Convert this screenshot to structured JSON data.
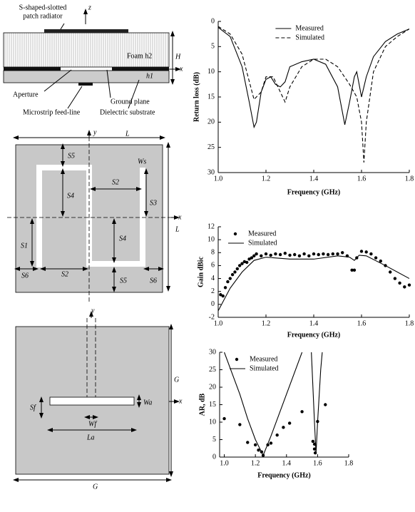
{
  "diagram": {
    "panel_a": [
      "S-shaped-slotted",
      "patch radiator",
      "z",
      "Foam h2",
      "H",
      "x",
      "h1",
      "Aperture",
      "Ground plane",
      "Microstrip feed-line",
      "Dielectric substrate"
    ],
    "panel_b": [
      "y",
      "L",
      "S5",
      "Ws",
      "S2",
      "S4",
      "S3",
      "x",
      "L",
      "S4",
      "S1",
      "S6",
      "S2",
      "S5",
      "S6"
    ],
    "panel_c": [
      "y",
      "G",
      "Wa",
      "x",
      "Sf",
      "Wf",
      "La",
      "G"
    ]
  },
  "chart_data": [
    {
      "type": "line",
      "y_label": "Return loss (dB)",
      "x_label": "Frequency (GHz)",
      "y_inverted": true,
      "legend": "upper center",
      "xlim": [
        1.0,
        1.8
      ],
      "xticks": [
        {
          "value": 1.0,
          "label": "1.0"
        },
        1.2,
        1.4,
        1.6,
        1.8
      ],
      "ylim": [
        0,
        30
      ],
      "yticks": [
        0,
        5,
        10,
        15,
        20,
        25,
        30
      ],
      "series": [
        {
          "name": "Measured",
          "style": "solid",
          "color": "#000000",
          "x": [
            1.0,
            1.05,
            1.1,
            1.13,
            1.15,
            1.16,
            1.18,
            1.2,
            1.22,
            1.24,
            1.26,
            1.28,
            1.3,
            1.35,
            1.4,
            1.45,
            1.5,
            1.53,
            1.55,
            1.57,
            1.58,
            1.6,
            1.62,
            1.65,
            1.7,
            1.75,
            1.8
          ],
          "values": [
            1.2,
            3,
            9,
            16,
            21,
            20,
            14,
            11.5,
            11,
            12.5,
            13,
            12,
            9,
            8,
            7.5,
            8.5,
            13,
            20.5,
            16,
            11,
            10,
            15,
            11,
            7,
            4,
            2.5,
            1.5
          ]
        },
        {
          "name": "Simulated",
          "style": "dashed",
          "color": "#000000",
          "x": [
            1.0,
            1.05,
            1.1,
            1.15,
            1.18,
            1.2,
            1.23,
            1.26,
            1.28,
            1.3,
            1.35,
            1.4,
            1.45,
            1.5,
            1.55,
            1.58,
            1.6,
            1.61,
            1.62,
            1.65,
            1.7,
            1.75,
            1.8
          ],
          "values": [
            1,
            2.5,
            6.5,
            15.5,
            14,
            11,
            11,
            14,
            16,
            13,
            9,
            7.5,
            7.5,
            9,
            12.5,
            15,
            20,
            28,
            20,
            10,
            5,
            3,
            1.5
          ]
        }
      ]
    },
    {
      "type": "line",
      "y_label": "Gain dBic",
      "x_label": "Frequency (GHz)",
      "y_inverted": false,
      "legend": "upper left",
      "xlim": [
        1.0,
        1.8
      ],
      "xticks": [
        {
          "value": 1.0,
          "label": "1.0"
        },
        1.2,
        1.4,
        1.6,
        1.8
      ],
      "ylim": [
        -2,
        12
      ],
      "yticks": [
        -2,
        0,
        2,
        4,
        6,
        8,
        10,
        12
      ],
      "series": [
        {
          "name": "Measured",
          "style": "markers",
          "color": "#000000",
          "x": [
            1.01,
            1.02,
            1.03,
            1.04,
            1.05,
            1.06,
            1.07,
            1.08,
            1.09,
            1.1,
            1.11,
            1.12,
            1.13,
            1.14,
            1.15,
            1.16,
            1.18,
            1.2,
            1.22,
            1.24,
            1.26,
            1.28,
            1.3,
            1.32,
            1.34,
            1.36,
            1.38,
            1.4,
            1.42,
            1.44,
            1.46,
            1.48,
            1.5,
            1.52,
            1.54,
            1.56,
            1.57,
            1.58,
            1.6,
            1.62,
            1.64,
            1.66,
            1.68,
            1.7,
            1.72,
            1.74,
            1.76,
            1.78,
            1.8
          ],
          "values": [
            1.5,
            1.3,
            2.6,
            3.5,
            4,
            4.6,
            5,
            5.5,
            6,
            6.3,
            6.6,
            6.5,
            7,
            7.2,
            7.5,
            7.8,
            7.5,
            7.8,
            7.6,
            7.8,
            7.7,
            7.9,
            7.6,
            7.7,
            7.5,
            7.8,
            7.5,
            7.8,
            7.7,
            7.8,
            7.7,
            7.8,
            7.8,
            8,
            7.5,
            5.3,
            5.3,
            7.2,
            8.2,
            8.1,
            7.8,
            7.2,
            6.7,
            6,
            5,
            4,
            3.3,
            2.7,
            3
          ]
        },
        {
          "name": "Simulated",
          "style": "solid",
          "color": "#000000",
          "x": [
            1.0,
            1.05,
            1.1,
            1.15,
            1.2,
            1.3,
            1.4,
            1.5,
            1.55,
            1.57,
            1.59,
            1.62,
            1.7,
            1.8
          ],
          "values": [
            -1,
            2.5,
            5,
            6.8,
            7.3,
            7,
            7,
            7.5,
            7.3,
            6.8,
            7.6,
            7.5,
            6,
            4
          ]
        }
      ]
    },
    {
      "type": "line",
      "y_label": "AR, dB",
      "x_label": "Frequency (GHz)",
      "y_inverted": false,
      "legend": "upper left",
      "xlim": [
        0.97,
        1.8
      ],
      "xticks": [
        {
          "value": 1.0,
          "label": "1.0"
        },
        1.2,
        1.4,
        1.6,
        1.8
      ],
      "ylim": [
        0,
        30
      ],
      "yticks": [
        0,
        5,
        10,
        15,
        20,
        25,
        30
      ],
      "series": [
        {
          "name": "Measured",
          "style": "markers",
          "color": "#000000",
          "x": [
            1.0,
            1.1,
            1.15,
            1.2,
            1.22,
            1.24,
            1.25,
            1.28,
            1.3,
            1.34,
            1.38,
            1.42,
            1.5,
            1.57,
            1.58,
            1.58,
            1.585,
            1.6,
            1.65
          ],
          "values": [
            11,
            9.3,
            4.2,
            3.5,
            2,
            1.5,
            0.5,
            3.5,
            4,
            6.3,
            8.5,
            9.7,
            13,
            4.5,
            3.7,
            2.3,
            1.2,
            10.2,
            15
          ]
        },
        {
          "name": "Simulated",
          "style": "solid",
          "color": "#000000",
          "x": [
            1.0,
            1.05,
            1.1,
            1.15,
            1.2,
            1.25,
            1.3,
            1.35,
            1.4,
            1.45,
            1.5,
            1.53,
            1.56,
            1.58,
            1.59,
            1.6,
            1.62,
            1.63
          ],
          "values": [
            30,
            24,
            18,
            11,
            5,
            0.5,
            6,
            12,
            18,
            24,
            30,
            null,
            30,
            10,
            1,
            10,
            25,
            30
          ]
        }
      ]
    }
  ]
}
